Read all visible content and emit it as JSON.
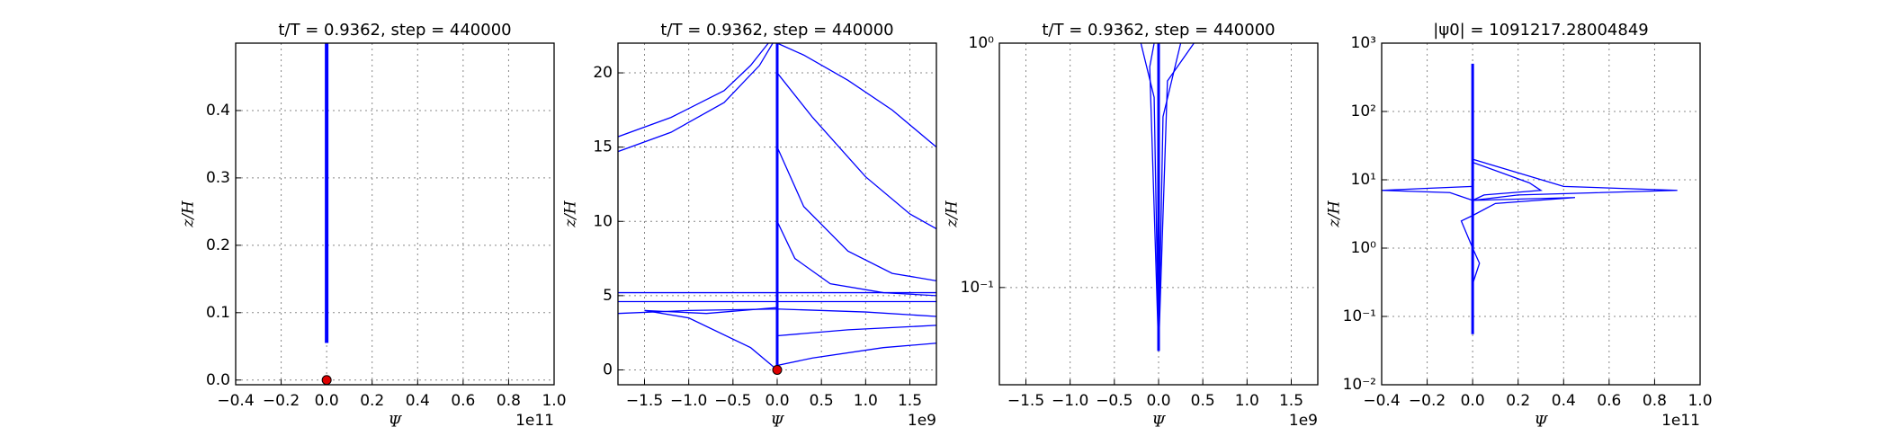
{
  "chart_data": [
    {
      "type": "line",
      "title": "t/T = 0.9362, step = 440000",
      "xlabel": "Ψ",
      "ylabel": "z/H",
      "x_offset": "1e11",
      "xlim": [
        -0.4,
        1.0
      ],
      "ylim": [
        -0.007,
        0.5
      ],
      "ylog": false,
      "grid": true,
      "xticks": [
        {
          "value": -0.4,
          "label": "−0.4"
        },
        {
          "value": -0.2,
          "label": "−0.2"
        },
        {
          "value": 0,
          "label": "0.0"
        },
        {
          "value": 0.2,
          "label": "0.2"
        },
        {
          "value": 0.4,
          "label": "0.4"
        },
        {
          "value": 0.6,
          "label": "0.6"
        },
        {
          "value": 0.8,
          "label": "0.8"
        },
        {
          "value": 1.0,
          "label": "1.0"
        }
      ],
      "yticks": [
        {
          "value": 0,
          "label": "0.0"
        },
        0.1,
        0.2,
        0.3,
        0.4
      ],
      "series": [
        {
          "color": "#0000ff",
          "width": 4,
          "x": [
            0,
            0
          ],
          "values": [
            0.055,
            0.5
          ]
        }
      ],
      "points": [
        {
          "x": 0,
          "y": 0,
          "color": "#dd0000"
        }
      ]
    },
    {
      "type": "line",
      "title": "t/T = 0.9362, step = 440000",
      "xlabel": "Ψ",
      "ylabel": "z/H",
      "x_offset": "1e9",
      "xlim": [
        -1.8,
        1.8
      ],
      "ylim": [
        -1,
        22
      ],
      "ylog": false,
      "grid": true,
      "xticks": [
        {
          "value": -1.5,
          "label": "−1.5"
        },
        {
          "value": -1.0,
          "label": "−1.0"
        },
        {
          "value": -0.5,
          "label": "−0.5"
        },
        {
          "value": 0,
          "label": "0.0"
        },
        {
          "value": 0.5,
          "label": "0.5"
        },
        {
          "value": 1.0,
          "label": "1.0"
        },
        {
          "value": 1.5,
          "label": "1.5"
        }
      ],
      "yticks": [
        0,
        5,
        10,
        15,
        20
      ],
      "series": [
        {
          "color": "#0000ff",
          "width": 1.3,
          "x": [
            -1.8,
            -1.2,
            -0.6,
            -0.3,
            -0.1
          ],
          "values": [
            15.7,
            17,
            18.8,
            20.5,
            22
          ]
        },
        {
          "color": "#0000ff",
          "width": 1.3,
          "x": [
            -1.8,
            -1.2,
            -0.6,
            -0.2,
            -0.05
          ],
          "values": [
            14.7,
            16,
            18,
            20.5,
            22
          ]
        },
        {
          "color": "#0000ff",
          "width": 1.3,
          "x": [
            0,
            0.3,
            0.8,
            1.3,
            1.8
          ],
          "values": [
            22,
            21.2,
            19.5,
            17.5,
            15
          ]
        },
        {
          "color": "#0000ff",
          "width": 1.3,
          "x": [
            0,
            0.4,
            1.0,
            1.5,
            1.8
          ],
          "values": [
            20,
            17,
            13,
            10.5,
            9.5
          ]
        },
        {
          "color": "#0000ff",
          "width": 1.3,
          "x": [
            0,
            0.3,
            0.8,
            1.3,
            1.8
          ],
          "values": [
            15,
            11,
            8,
            6.5,
            6
          ]
        },
        {
          "color": "#0000ff",
          "width": 1.3,
          "x": [
            0,
            0.2,
            0.6,
            1.2,
            1.8
          ],
          "values": [
            10,
            7.5,
            5.8,
            5.2,
            5
          ]
        },
        {
          "color": "#0000ff",
          "width": 1.3,
          "x": [
            -1.8,
            0,
            1.8
          ],
          "values": [
            4.6,
            4.6,
            4.6
          ]
        },
        {
          "color": "#0000ff",
          "width": 1.3,
          "x": [
            -1.8,
            0,
            1.8
          ],
          "values": [
            5.2,
            5.2,
            5.2
          ]
        },
        {
          "color": "#0000ff",
          "width": 1.3,
          "x": [
            -1.8,
            -1.0,
            0,
            1.0,
            1.8
          ],
          "values": [
            3.8,
            4.0,
            4.1,
            3.9,
            3.6
          ]
        },
        {
          "color": "#0000ff",
          "width": 1.3,
          "x": [
            0,
            -0.3,
            -1.0,
            -1.5,
            -0.8,
            0
          ],
          "values": [
            0,
            1.5,
            3.5,
            4.0,
            3.8,
            4.2
          ]
        },
        {
          "color": "#0000ff",
          "width": 1.3,
          "x": [
            0,
            0.4,
            1.2,
            1.8
          ],
          "values": [
            0.3,
            0.8,
            1.5,
            1.8
          ]
        },
        {
          "color": "#0000ff",
          "width": 1.3,
          "x": [
            0,
            0.8,
            1.8
          ],
          "values": [
            2.3,
            2.7,
            3.0
          ]
        },
        {
          "color": "#0000ff",
          "width": 3,
          "x": [
            0,
            0
          ],
          "values": [
            0,
            22
          ]
        }
      ],
      "points": [
        {
          "x": 0,
          "y": 0,
          "color": "#dd0000"
        }
      ]
    },
    {
      "type": "line",
      "title": "t/T = 0.9362, step = 440000",
      "xlabel": "Ψ",
      "ylabel": "z/H",
      "x_offset": "1e9",
      "xlim": [
        -1.8,
        1.8
      ],
      "ylim": [
        0.04,
        1
      ],
      "ylog": true,
      "grid": true,
      "xticks": [
        {
          "value": -1.5,
          "label": "−1.5"
        },
        {
          "value": -1.0,
          "label": "−1.0"
        },
        {
          "value": -0.5,
          "label": "−0.5"
        },
        {
          "value": 0,
          "label": "0.0"
        },
        {
          "value": 0.5,
          "label": "0.5"
        },
        {
          "value": 1.0,
          "label": "1.0"
        },
        {
          "value": 1.5,
          "label": "1.5"
        }
      ],
      "yticks": [
        {
          "value": 0.1,
          "label": "10⁻¹"
        },
        {
          "value": 1,
          "label": "10⁰"
        }
      ],
      "series": [
        {
          "color": "#0000ff",
          "width": 1.3,
          "x": [
            0,
            0.05,
            0.25
          ],
          "values": [
            0.055,
            0.5,
            1
          ]
        },
        {
          "color": "#0000ff",
          "width": 1.3,
          "x": [
            0,
            -0.05,
            -0.2
          ],
          "values": [
            0.055,
            0.6,
            1
          ]
        },
        {
          "color": "#0000ff",
          "width": 1.3,
          "x": [
            0,
            0.1,
            0.4
          ],
          "values": [
            0.055,
            0.7,
            1
          ]
        },
        {
          "color": "#0000ff",
          "width": 1.3,
          "x": [
            0,
            -0.1,
            -0.05
          ],
          "values": [
            0.055,
            0.8,
            1
          ]
        },
        {
          "color": "#0000ff",
          "width": 3,
          "x": [
            0,
            0
          ],
          "values": [
            0.055,
            1
          ]
        }
      ]
    },
    {
      "type": "line",
      "title": "|ψ0| = 1091217.28004849",
      "xlabel": "Ψ",
      "ylabel": "z/H",
      "x_offset": "1e11",
      "xlim": [
        -0.4,
        1.0
      ],
      "ylim": [
        0.01,
        1000
      ],
      "ylog": true,
      "grid": true,
      "xticks": [
        {
          "value": -0.4,
          "label": "−0.4"
        },
        {
          "value": -0.2,
          "label": "−0.2"
        },
        {
          "value": 0,
          "label": "0.0"
        },
        {
          "value": 0.2,
          "label": "0.2"
        },
        {
          "value": 0.4,
          "label": "0.4"
        },
        {
          "value": 0.6,
          "label": "0.6"
        },
        {
          "value": 0.8,
          "label": "0.8"
        },
        {
          "value": 1.0,
          "label": "1.0"
        }
      ],
      "yticks": [
        {
          "value": 0.01,
          "label": "10⁻²"
        },
        {
          "value": 0.1,
          "label": "10⁻¹"
        },
        {
          "value": 1,
          "label": "10⁰"
        },
        {
          "value": 10,
          "label": "10¹"
        },
        {
          "value": 100,
          "label": "10²"
        },
        {
          "value": 1000,
          "label": "10³"
        }
      ],
      "series": [
        {
          "color": "#0000ff",
          "width": 1.3,
          "x": [
            0,
            0.2,
            0.9,
            0.4,
            0
          ],
          "values": [
            5,
            6,
            7,
            8,
            20
          ]
        },
        {
          "color": "#0000ff",
          "width": 1.3,
          "x": [
            0,
            -0.2,
            -0.4,
            -0.1,
            0
          ],
          "values": [
            8,
            7.5,
            7,
            6.5,
            5
          ]
        },
        {
          "color": "#0000ff",
          "width": 1.3,
          "x": [
            0,
            0.45,
            0.1,
            0
          ],
          "values": [
            5,
            5.5,
            4.5,
            3
          ]
        },
        {
          "color": "#0000ff",
          "width": 1.3,
          "x": [
            0,
            0.25,
            0.3,
            0.05,
            0
          ],
          "values": [
            18,
            9,
            7,
            6,
            5
          ]
        },
        {
          "color": "#0000ff",
          "width": 1.3,
          "x": [
            0,
            -0.05,
            0,
            0.03,
            0
          ],
          "values": [
            3,
            2.5,
            1,
            0.6,
            0.3
          ]
        },
        {
          "color": "#0000ff",
          "width": 3,
          "x": [
            0,
            0
          ],
          "values": [
            0.055,
            500
          ]
        }
      ]
    }
  ]
}
